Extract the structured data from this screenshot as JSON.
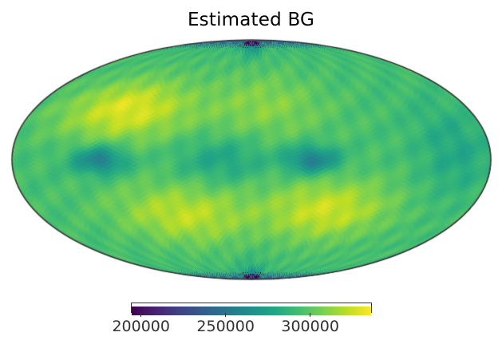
{
  "chart_data": {
    "type": "heatmap",
    "subtype": "mollweide-sky-map",
    "title": "Estimated BG",
    "colormap": "viridis",
    "colorbar": {
      "orientation": "horizontal",
      "vmin": 194000,
      "vmax": 336500,
      "ticks": [
        200000,
        250000,
        300000
      ],
      "tick_labels": [
        "200000",
        "250000",
        "300000"
      ]
    },
    "projection": "mollweide",
    "features": [
      {
        "description": "low values (dark purple) near north and south poles along central meridian",
        "approx_value": 195000
      },
      {
        "description": "teal/blue-green minima near equator at left (lon≈+120) and right-center (lon≈-45)",
        "approx_value": 250000
      },
      {
        "description": "yellow maxima at mid-latitudes on left-upper and lower-right lobes",
        "approx_value": 335000
      },
      {
        "description": "general background green-yellow",
        "approx_value": 300000
      }
    ],
    "grid": false,
    "legend": null
  },
  "colors": {
    "outline": "#333333",
    "background": "#ffffff",
    "text": "#333333"
  }
}
